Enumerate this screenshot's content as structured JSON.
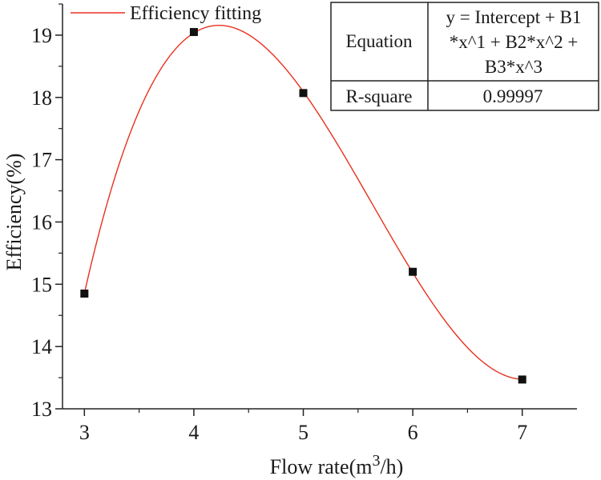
{
  "chart_data": {
    "type": "scatter",
    "title": "",
    "xlabel": "Flow rate(m3/h)",
    "xlabel_parts": {
      "prefix": "Flow rate(m",
      "superscript": "3",
      "suffix": "/h)"
    },
    "ylabel": "Efficiency(%)",
    "xlim": [
      2.8,
      7.5
    ],
    "ylim": [
      13,
      19.5
    ],
    "x_ticks": [
      3,
      4,
      5,
      6,
      7
    ],
    "y_ticks": [
      13,
      14,
      15,
      16,
      17,
      18,
      19
    ],
    "x_tick_labels": [
      "3",
      "4",
      "5",
      "6",
      "7"
    ],
    "y_tick_labels": [
      "13",
      "14",
      "15",
      "16",
      "17",
      "18",
      "19"
    ],
    "series": [
      {
        "name": "Efficiency",
        "marker": "square",
        "x": [
          3,
          4,
          5,
          6,
          7
        ],
        "y": [
          14.85,
          19.05,
          18.07,
          15.2,
          13.47
        ]
      },
      {
        "name": "Efficiency fitting",
        "type": "line",
        "fit": "cubic",
        "x_range": [
          3,
          7
        ]
      }
    ],
    "legend": {
      "position": "top-left",
      "entries": [
        "Efficiency fitting"
      ]
    },
    "fit_table": {
      "equation_label": "Equation",
      "equation_lines": [
        "y = Intercept + B1",
        "*x^1 + B2*x^2 +",
        "B3*x^3"
      ],
      "rsquare_label": "R-square",
      "rsquare_value": "0.99997"
    },
    "colors": {
      "fit_line": "#e8311f",
      "marker": "#111111",
      "axis": "#222222"
    }
  }
}
